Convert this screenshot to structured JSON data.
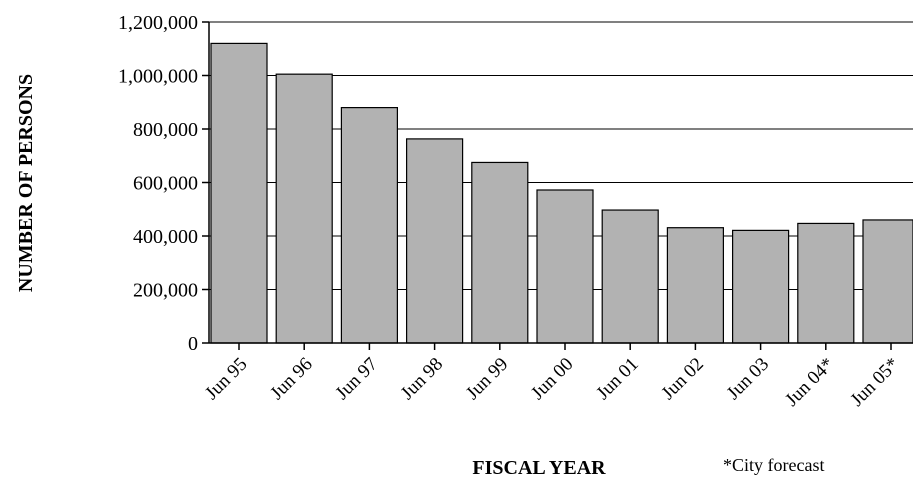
{
  "chart_data": {
    "type": "bar",
    "xlabel": "FISCAL YEAR",
    "ylabel": "NUMBER OF PERSONS",
    "footnote": "*City forecast",
    "categories": [
      "Jun 95",
      "Jun 96",
      "Jun 97",
      "Jun 98",
      "Jun 99",
      "Jun 00",
      "Jun 01",
      "Jun 02",
      "Jun 03",
      "Jun 04*",
      "Jun 05*"
    ],
    "values": [
      1120000,
      1005000,
      880000,
      763000,
      675000,
      572000,
      497000,
      431000,
      421000,
      447000,
      460000
    ],
    "ylim": [
      0,
      1200000
    ],
    "yticks": [
      0,
      200000,
      400000,
      600000,
      800000,
      1000000,
      1200000
    ],
    "ytick_labels": [
      "0",
      "200,000",
      "400,000",
      "600,000",
      "800,000",
      "1,000,000",
      "1,200,000"
    ],
    "grid": true,
    "bar_color": "#b2b2b2"
  }
}
